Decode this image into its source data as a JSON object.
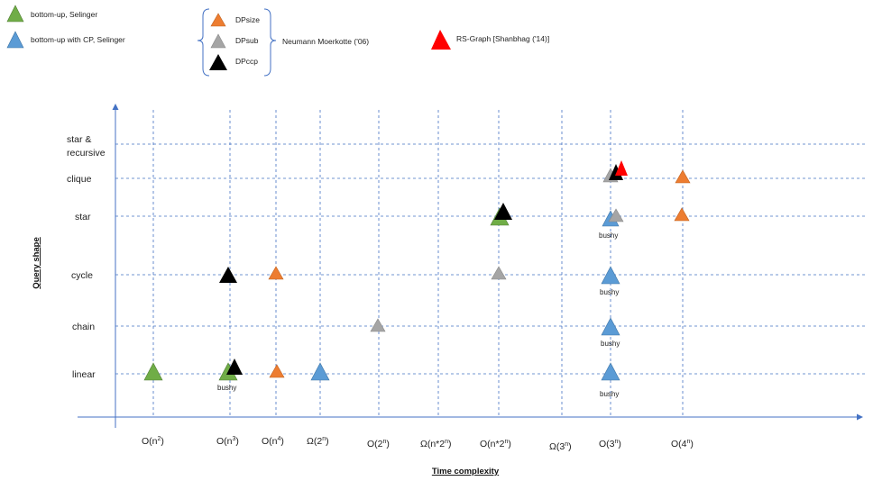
{
  "legend": {
    "green": "bottom-up, Selinger",
    "blue": "bottom-up with CP, Selinger",
    "orange": "DPsize",
    "gray": "DPsub",
    "black": "DPccp",
    "group": "Neumann Moerkotte ('06)",
    "red": "RS-Graph  [Shanbhag ('14)]"
  },
  "axes": {
    "x_title": "Time complexity",
    "y_title": "Query shape"
  },
  "rows": [
    {
      "id": "star-recursive",
      "lines": [
        "star &",
        "recursive"
      ]
    },
    {
      "id": "clique",
      "lines": [
        "clique"
      ]
    },
    {
      "id": "star",
      "lines": [
        "star"
      ]
    },
    {
      "id": "cycle",
      "lines": [
        "cycle"
      ]
    },
    {
      "id": "chain",
      "lines": [
        "chain"
      ]
    },
    {
      "id": "linear",
      "lines": [
        "linear"
      ]
    }
  ],
  "columns": [
    {
      "base": "O(n",
      "sup": "2",
      "tail": ")"
    },
    {
      "base": "O(n",
      "sup": "3",
      "tail": ")"
    },
    {
      "base": "O(n",
      "sup": "4",
      "tail": ")"
    },
    {
      "base": "Ω(2",
      "sup": "n",
      "tail": ")"
    },
    {
      "base": "O(2",
      "sup": "n",
      "tail": ")"
    },
    {
      "base": "Ω(n*2",
      "sup": "n",
      "tail": ")"
    },
    {
      "base": "O(n*2",
      "sup": "n",
      "tail": ")"
    },
    {
      "base": "Ω(3",
      "sup": "n",
      "tail": ")"
    },
    {
      "base": "O(3",
      "sup": "n",
      "tail": ")"
    },
    {
      "base": "O(4",
      "sup": "n",
      "tail": ")"
    }
  ],
  "annotations": {
    "bushy": "bushy"
  },
  "colors": {
    "green": "#70AD47",
    "blue": "#5B9BD5",
    "orange": "#ED7D31",
    "gray": "#A5A5A5",
    "black": "#000000",
    "red": "#FF0000",
    "grid": "#4472C4"
  }
}
